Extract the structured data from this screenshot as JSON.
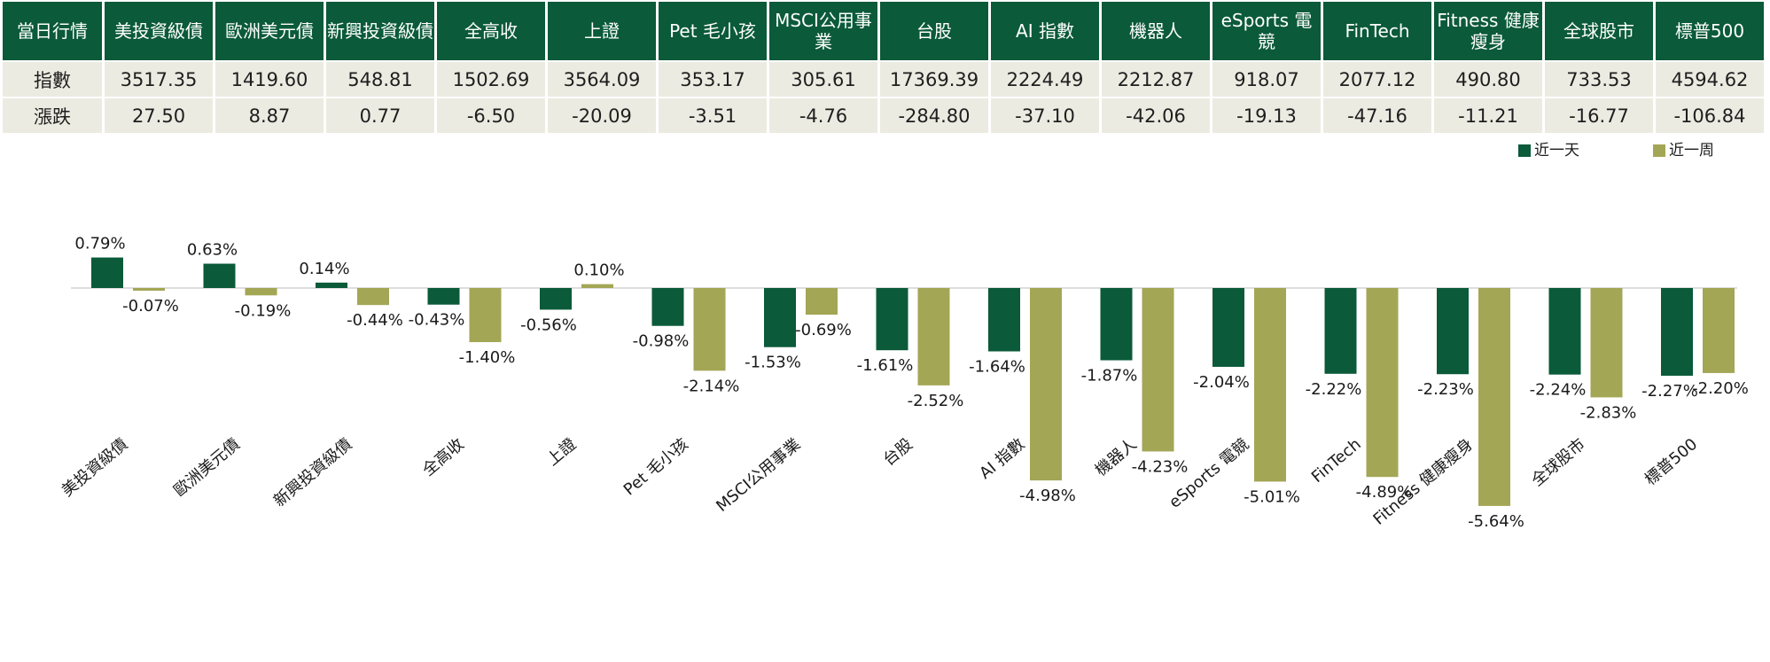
{
  "table": {
    "header_label": "當日行情",
    "columns": [
      "美投資級債",
      "歐洲美元債",
      "新興投資級債",
      "全高收",
      "上證",
      "Pet 毛小孩",
      "MSCI公用事業",
      "台股",
      "AI 指數",
      "機器人",
      "eSports 電競",
      "FinTech",
      "Fitness 健康瘦身",
      "全球股市",
      "標普500"
    ],
    "rows": [
      {
        "label": "指數",
        "values": [
          "3517.35",
          "1419.60",
          "548.81",
          "1502.69",
          "3564.09",
          "353.17",
          "305.61",
          "17369.39",
          "2224.49",
          "2212.87",
          "918.07",
          "2077.12",
          "490.80",
          "733.53",
          "4594.62"
        ]
      },
      {
        "label": "漲跌",
        "values": [
          "27.50",
          "8.87",
          "0.77",
          "-6.50",
          "-20.09",
          "-3.51",
          "-4.76",
          "-284.80",
          "-37.10",
          "-42.06",
          "-19.13",
          "-47.16",
          "-11.21",
          "-16.77",
          "-106.84"
        ]
      }
    ]
  },
  "chart_data": {
    "type": "bar",
    "categories": [
      "美投資級債",
      "歐洲美元債",
      "新興投資級債",
      "全高收",
      "上證",
      "Pet 毛小孩",
      "MSCI公用事業",
      "台股",
      "AI 指數",
      "機器人",
      "eSports 電競",
      "FinTech",
      "Fitness 健康瘦身",
      "全球股市",
      "標普500"
    ],
    "series": [
      {
        "name": "近一天",
        "color": "#0b5a3a",
        "values": [
          0.79,
          0.63,
          0.14,
          -0.43,
          -0.56,
          -0.98,
          -1.53,
          -1.61,
          -1.64,
          -1.87,
          -2.04,
          -2.22,
          -2.23,
          -2.24,
          -2.27
        ],
        "labels": [
          "0.79%",
          "0.63%",
          "0.14%",
          "-0.43%",
          "-0.56%",
          "-0.98%",
          "-1.53%",
          "-1.61%",
          "-1.64%",
          "-1.87%",
          "-2.04%",
          "-2.22%",
          "-2.23%",
          "-2.24%",
          "-2.27%"
        ]
      },
      {
        "name": "近一周",
        "color": "#a3a655",
        "values": [
          -0.07,
          -0.19,
          -0.44,
          -1.4,
          0.1,
          -2.14,
          -0.69,
          -2.52,
          -4.98,
          -4.23,
          -5.01,
          -4.89,
          -5.64,
          -2.83,
          -2.2
        ],
        "labels": [
          "-0.07%",
          "-0.19%",
          "-0.44%",
          "-1.40%",
          "0.10%",
          "-2.14%",
          "-0.69%",
          "-2.52%",
          "-4.98%",
          "-4.23%",
          "-5.01%",
          "-4.89%",
          "-5.64%",
          "-2.83%",
          "-2.20%"
        ]
      }
    ],
    "ylim": [
      -5.64,
      0.79
    ],
    "grid": false,
    "legend": "top-right",
    "title": "",
    "xlabel": "",
    "ylabel": ""
  }
}
